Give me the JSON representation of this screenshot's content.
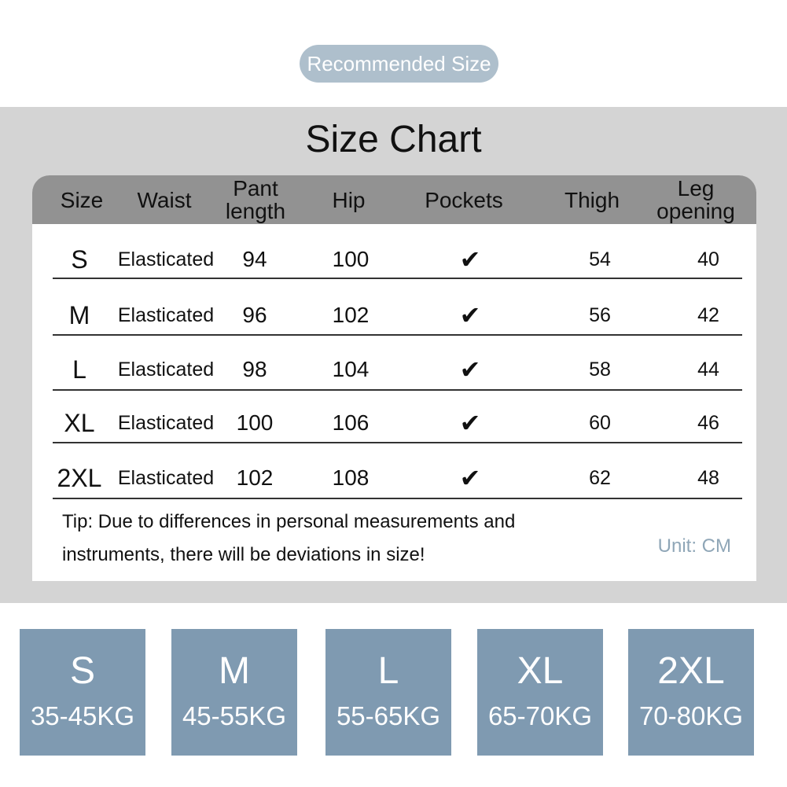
{
  "badge": "Recommended Size",
  "title": "Size Chart",
  "table": {
    "headers": [
      "Size",
      "Waist",
      "Pant length",
      "Hip",
      "Pockets",
      "Thigh",
      "Leg opening"
    ],
    "rows": [
      {
        "size": "S",
        "waist": "Elasticated",
        "pant_length": "94",
        "hip": "100",
        "pockets": "✔",
        "thigh": "54",
        "leg_opening": "40"
      },
      {
        "size": "M",
        "waist": "Elasticated",
        "pant_length": "96",
        "hip": "102",
        "pockets": "✔",
        "thigh": "56",
        "leg_opening": "42"
      },
      {
        "size": "L",
        "waist": "Elasticated",
        "pant_length": "98",
        "hip": "104",
        "pockets": "✔",
        "thigh": "58",
        "leg_opening": "44"
      },
      {
        "size": "XL",
        "waist": "Elasticated",
        "pant_length": "100",
        "hip": "106",
        "pockets": "✔",
        "thigh": "60",
        "leg_opening": "46"
      },
      {
        "size": "2XL",
        "waist": "Elasticated",
        "pant_length": "102",
        "hip": "108",
        "pockets": "✔",
        "thigh": "62",
        "leg_opening": "48"
      }
    ]
  },
  "tip": "Tip: Due to differences in personal measurements and instruments, there will be deviations in size!",
  "unit": "Unit: CM",
  "recommendations": [
    {
      "size": "S",
      "weight": "35-45KG"
    },
    {
      "size": "M",
      "weight": "45-55KG"
    },
    {
      "size": "L",
      "weight": "55-65KG"
    },
    {
      "size": "XL",
      "weight": "65-70KG"
    },
    {
      "size": "2XL",
      "weight": "70-80KG"
    }
  ],
  "colors": {
    "badge": "#aebfcc",
    "band": "#d4d4d4",
    "header": "#929292",
    "size_box": "#7f9ab1",
    "unit_text": "#8fa6b7"
  }
}
